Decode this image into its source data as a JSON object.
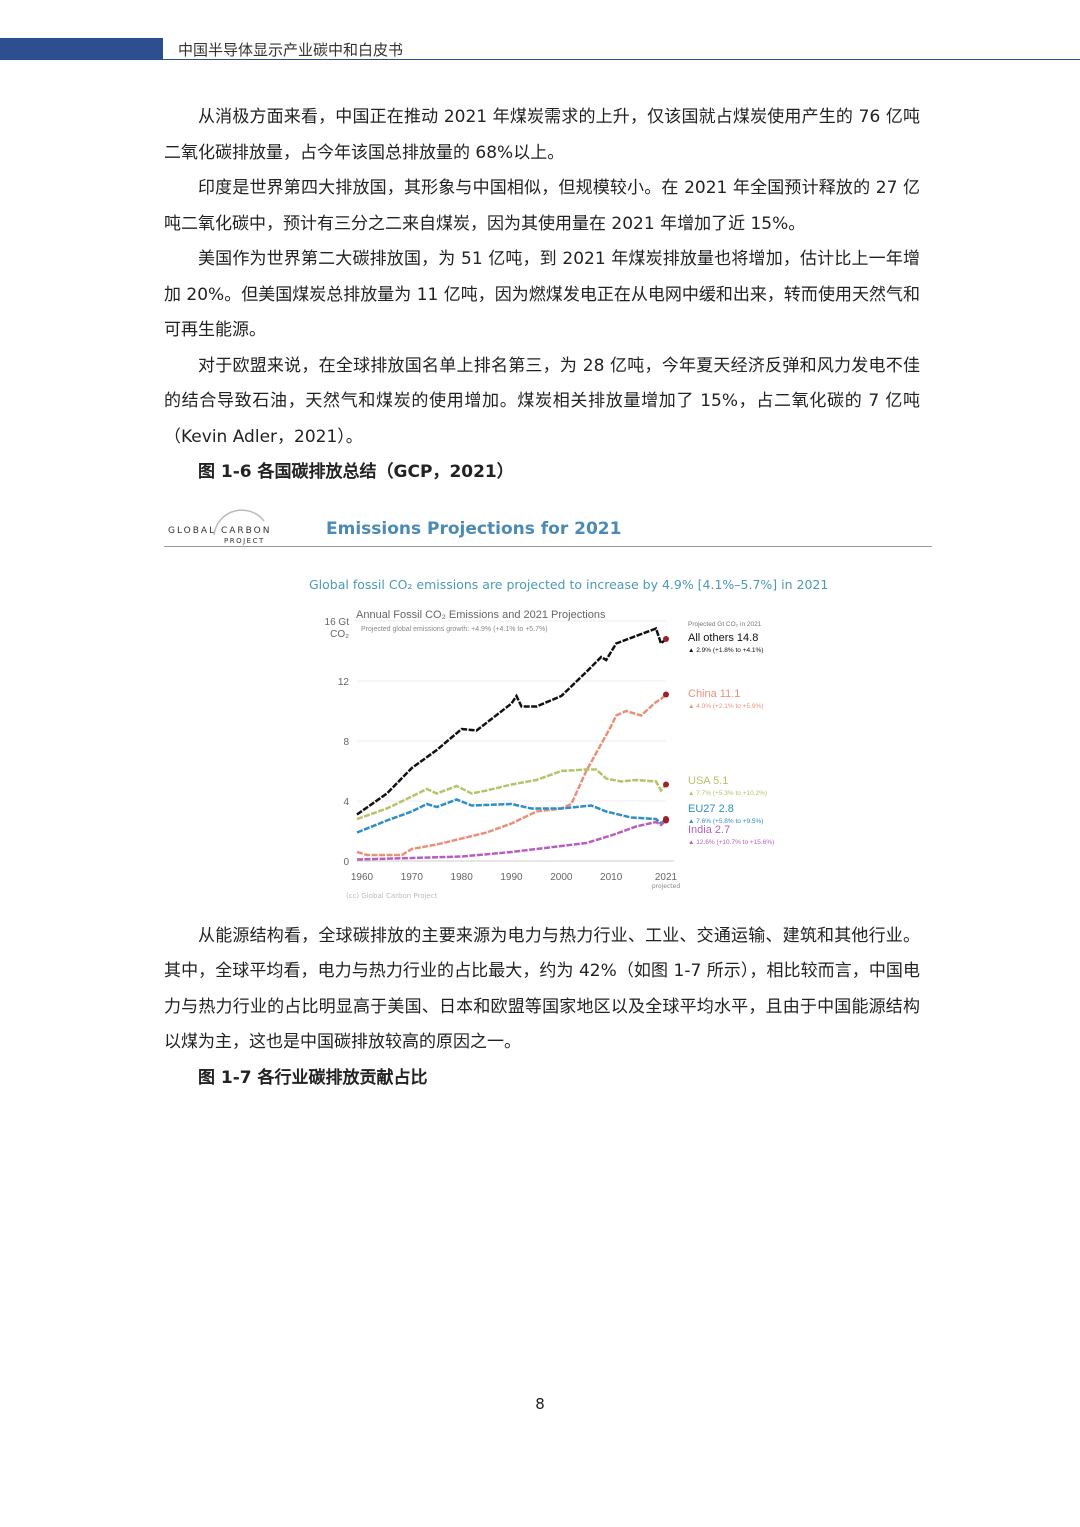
{
  "header": {
    "title": "中国半导体显示产业碳中和白皮书"
  },
  "paragraphs": [
    "从消极方面来看，中国正在推动 2021 年煤炭需求的上升，仅该国就占煤炭使用产生的 76 亿吨二氧化碳排放量，占今年该国总排放量的 68%以上。",
    "印度是世界第四大排放国，其形象与中国相似，但规模较小。在 2021 年全国预计释放的 27 亿吨二氧化碳中，预计有三分之二来自煤炭，因为其使用量在 2021 年增加了近 15%。",
    "美国作为世界第二大碳排放国，为 51 亿吨，到 2021 年煤炭排放量也将增加，估计比上一年增加 20%。但美国煤炭总排放量为 11 亿吨，因为燃煤发电正在从电网中缓和出来，转而使用天然气和可再生能源。",
    "对于欧盟来说，在全球排放国名单上排名第三，为 28 亿吨，今年夏天经济反弹和风力发电不佳的结合导致石油，天然气和煤炭的使用增加。煤炭相关排放量增加了 15%，占二氧化碳的 7 亿吨（Kevin Adler，2021）。"
  ],
  "figure1": {
    "caption": "图 1-6 各国碳排放总结（GCP，2021）",
    "logo": "GLOBAL CARBON PROJECT",
    "logo_top": "GLOBAL CARBON",
    "logo_bottom": "PROJECT",
    "title": "Emissions Projections for 2021",
    "subtitle": "Global fossil CO₂ emissions are projected to increase by 4.9% [4.1%–5.7%] in 2021"
  },
  "chart_data": {
    "type": "line",
    "title": "Annual Fossil CO₂ Emissions and 2021 Projections",
    "subtitle": "Projected global emissions growth: +4.9% (+4.1% to +5.7%)",
    "ylabel": "Gt CO₂",
    "ylim": [
      0,
      16
    ],
    "yticks": [
      "0",
      "4",
      "8",
      "12",
      "16 Gt"
    ],
    "xlim": [
      1959,
      2021
    ],
    "xticks": [
      "1960",
      "1970",
      "1980",
      "1990",
      "2000",
      "2010",
      "2021"
    ],
    "x_note": "projected",
    "legend_header": "Projected Gt CO₂ in 2021",
    "credit": "(cc) Global Carbon Project",
    "series": [
      {
        "name": "All others",
        "label": "All others 14.8",
        "growth": "▲ 2.9% (+1.8% to +4.1%)",
        "color": "#111111",
        "points": [
          [
            1959,
            3.1
          ],
          [
            1965,
            4.5
          ],
          [
            1970,
            6.2
          ],
          [
            1975,
            7.4
          ],
          [
            1980,
            8.8
          ],
          [
            1983,
            8.7
          ],
          [
            1990,
            10.5
          ],
          [
            1991,
            11.0
          ],
          [
            1992,
            10.3
          ],
          [
            1995,
            10.3
          ],
          [
            2000,
            11.0
          ],
          [
            2005,
            12.6
          ],
          [
            2008,
            13.6
          ],
          [
            2009,
            13.4
          ],
          [
            2011,
            14.5
          ],
          [
            2015,
            15.0
          ],
          [
            2019,
            15.5
          ],
          [
            2020,
            14.5
          ],
          [
            2021,
            14.8
          ]
        ]
      },
      {
        "name": "China",
        "label": "China 11.1",
        "growth": "▲ 4.0% (+2.1% to +5.9%)",
        "color": "#e8917a",
        "points": [
          [
            1959,
            0.6
          ],
          [
            1961,
            0.4
          ],
          [
            1968,
            0.4
          ],
          [
            1970,
            0.8
          ],
          [
            1975,
            1.1
          ],
          [
            1980,
            1.5
          ],
          [
            1985,
            1.9
          ],
          [
            1990,
            2.5
          ],
          [
            1995,
            3.3
          ],
          [
            2000,
            3.5
          ],
          [
            2002,
            3.8
          ],
          [
            2005,
            6.0
          ],
          [
            2010,
            9.0
          ],
          [
            2011,
            9.7
          ],
          [
            2013,
            10.0
          ],
          [
            2016,
            9.7
          ],
          [
            2019,
            10.6
          ],
          [
            2020,
            10.8
          ],
          [
            2021,
            11.1
          ]
        ]
      },
      {
        "name": "USA",
        "label": "USA 5.1",
        "growth": "▲ 7.7% (+5.3% to +10.2%)",
        "color": "#b5c36a",
        "points": [
          [
            1959,
            2.8
          ],
          [
            1965,
            3.5
          ],
          [
            1970,
            4.3
          ],
          [
            1973,
            4.8
          ],
          [
            1975,
            4.5
          ],
          [
            1979,
            5.0
          ],
          [
            1982,
            4.5
          ],
          [
            1985,
            4.7
          ],
          [
            1990,
            5.1
          ],
          [
            1995,
            5.4
          ],
          [
            2000,
            6.0
          ],
          [
            2005,
            6.1
          ],
          [
            2007,
            6.1
          ],
          [
            2009,
            5.5
          ],
          [
            2012,
            5.3
          ],
          [
            2015,
            5.4
          ],
          [
            2019,
            5.3
          ],
          [
            2020,
            4.7
          ],
          [
            2021,
            5.1
          ]
        ]
      },
      {
        "name": "EU27",
        "label": "EU27 2.8",
        "growth": "▲ 7.6% (+5.8% to +9.5%)",
        "color": "#2f8fc4",
        "points": [
          [
            1959,
            1.9
          ],
          [
            1965,
            2.7
          ],
          [
            1970,
            3.3
          ],
          [
            1973,
            3.8
          ],
          [
            1975,
            3.6
          ],
          [
            1979,
            4.1
          ],
          [
            1982,
            3.7
          ],
          [
            1990,
            3.8
          ],
          [
            1994,
            3.5
          ],
          [
            2000,
            3.5
          ],
          [
            2006,
            3.7
          ],
          [
            2009,
            3.3
          ],
          [
            2014,
            2.9
          ],
          [
            2019,
            2.8
          ],
          [
            2020,
            2.5
          ],
          [
            2021,
            2.8
          ]
        ]
      },
      {
        "name": "India",
        "label": "India 2.7",
        "growth": "▲ 12.6% (+10.7% to +15.6%)",
        "color": "#b65fc0",
        "points": [
          [
            1959,
            0.1
          ],
          [
            1970,
            0.2
          ],
          [
            1980,
            0.3
          ],
          [
            1990,
            0.6
          ],
          [
            2000,
            1.0
          ],
          [
            2005,
            1.2
          ],
          [
            2010,
            1.7
          ],
          [
            2015,
            2.3
          ],
          [
            2019,
            2.6
          ],
          [
            2020,
            2.4
          ],
          [
            2021,
            2.7
          ]
        ]
      }
    ]
  },
  "paragraphs2": [
    "从能源结构看，全球碳排放的主要来源为电力与热力行业、工业、交通运输、建筑和其他行业。其中，全球平均看，电力与热力行业的占比最大，约为 42%（如图 1-7 所示），相比较而言，中国电力与热力行业的占比明显高于美国、日本和欧盟等国家地区以及全球平均水平，且由于中国能源结构以煤为主，这也是中国碳排放较高的原因之一。"
  ],
  "figure2": {
    "caption": "图 1-7  各行业碳排放贡献占比"
  },
  "page_number": "8"
}
